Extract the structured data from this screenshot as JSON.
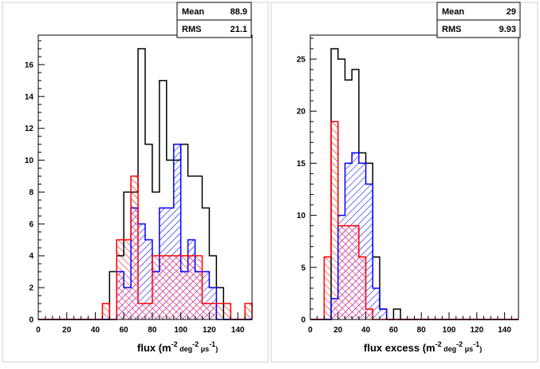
{
  "colors": {
    "background": "#ffffff",
    "pad_frame": "#d2d2d2",
    "black_series": "#000000",
    "blue_series": "#0000ff",
    "red_series": "#ff0000",
    "magenta_overlap": "#cc33cc"
  },
  "chart_data": [
    {
      "type": "histogram",
      "title": "",
      "xlabel": "flux (m⁻² deg⁻² μs⁻¹)",
      "xlabel_parts": {
        "base": "flux (m",
        "e1": "-2",
        "mid": " deg",
        "e2": "-2",
        "mu": " μs",
        "e3": "-1",
        "end": ")"
      },
      "ylabel": "",
      "xlim": [
        0,
        150
      ],
      "ylim": [
        0,
        17.85
      ],
      "bin_width": 5,
      "xticks": [
        0,
        20,
        40,
        60,
        80,
        100,
        120,
        140
      ],
      "xtick_labels": [
        "0",
        "20",
        "40",
        "60",
        "80",
        "100",
        "120",
        "140"
      ],
      "yticks": [
        0,
        2,
        4,
        6,
        8,
        10,
        12,
        14,
        16
      ],
      "ytick_labels": [
        "0",
        "2",
        "4",
        "6",
        "8",
        "10",
        "12",
        "14",
        "16"
      ],
      "grid": false,
      "stats": {
        "mean_label": "Mean",
        "mean_value": "88.9",
        "rms_label": "RMS",
        "rms_value": "21.1"
      },
      "series": [
        {
          "color": "black",
          "style": "outline",
          "values": [
            0,
            0,
            0,
            0,
            0,
            0,
            0,
            0,
            0,
            0,
            3,
            4,
            8,
            8,
            17,
            11,
            8,
            15,
            10,
            10,
            11,
            9,
            9,
            7,
            4,
            2,
            0,
            0,
            0,
            0
          ]
        },
        {
          "color": "blue",
          "style": "hatch",
          "values": [
            0,
            0,
            0,
            0,
            0,
            0,
            0,
            0,
            0,
            0,
            0,
            3,
            2,
            7,
            6,
            5,
            3,
            7,
            7,
            11,
            3,
            5,
            3,
            3,
            2,
            0,
            0,
            0,
            0,
            0
          ]
        },
        {
          "color": "red",
          "style": "hatch",
          "values": [
            0,
            0,
            0,
            0,
            0,
            0,
            0,
            0,
            0,
            1,
            0,
            5,
            5,
            9,
            1,
            1,
            4,
            4,
            4,
            4,
            4,
            4,
            4,
            1,
            1,
            1,
            1,
            0,
            0,
            1
          ]
        }
      ]
    },
    {
      "type": "histogram",
      "title": "",
      "xlabel": "flux excess (m⁻² deg⁻² μs⁻¹)",
      "xlabel_parts": {
        "base": "flux excess (m",
        "e1": "-2",
        "mid": " deg",
        "e2": "-2",
        "mu": " μs",
        "e3": "-1",
        "end": ")"
      },
      "ylabel": "",
      "xlim": [
        0,
        150
      ],
      "ylim": [
        0,
        27.3
      ],
      "bin_width": 5,
      "xticks": [
        0,
        20,
        40,
        60,
        80,
        100,
        120,
        140
      ],
      "xtick_labels": [
        "0",
        "20",
        "40",
        "60",
        "80",
        "100",
        "120",
        "140"
      ],
      "yticks": [
        0,
        5,
        10,
        15,
        20,
        25
      ],
      "ytick_labels": [
        "0",
        "5",
        "10",
        "15",
        "20",
        "25"
      ],
      "grid": false,
      "stats": {
        "mean_label": "Mean",
        "mean_value": "29",
        "rms_label": "RMS",
        "rms_value": "9.93"
      },
      "series": [
        {
          "color": "black",
          "style": "outline",
          "values": [
            0,
            0,
            0,
            26,
            25,
            23,
            24,
            16,
            15,
            6,
            1,
            0,
            1,
            0,
            0,
            0,
            0,
            0,
            0,
            0,
            0,
            0,
            0,
            0,
            0,
            0,
            0,
            0,
            0,
            0
          ]
        },
        {
          "color": "blue",
          "style": "hatch",
          "values": [
            0,
            0,
            0,
            2,
            10,
            15,
            16,
            15,
            13,
            3,
            1,
            0,
            0,
            0,
            0,
            0,
            0,
            0,
            0,
            0,
            0,
            0,
            0,
            0,
            0,
            0,
            0,
            0,
            0,
            0
          ]
        },
        {
          "color": "red",
          "style": "hatch",
          "values": [
            0,
            0,
            6,
            19,
            9,
            9,
            9,
            6,
            1,
            0,
            0,
            0,
            0,
            0,
            0,
            0,
            0,
            0,
            0,
            0,
            0,
            0,
            0,
            0,
            0,
            0,
            0,
            0,
            0,
            0
          ]
        }
      ]
    }
  ]
}
